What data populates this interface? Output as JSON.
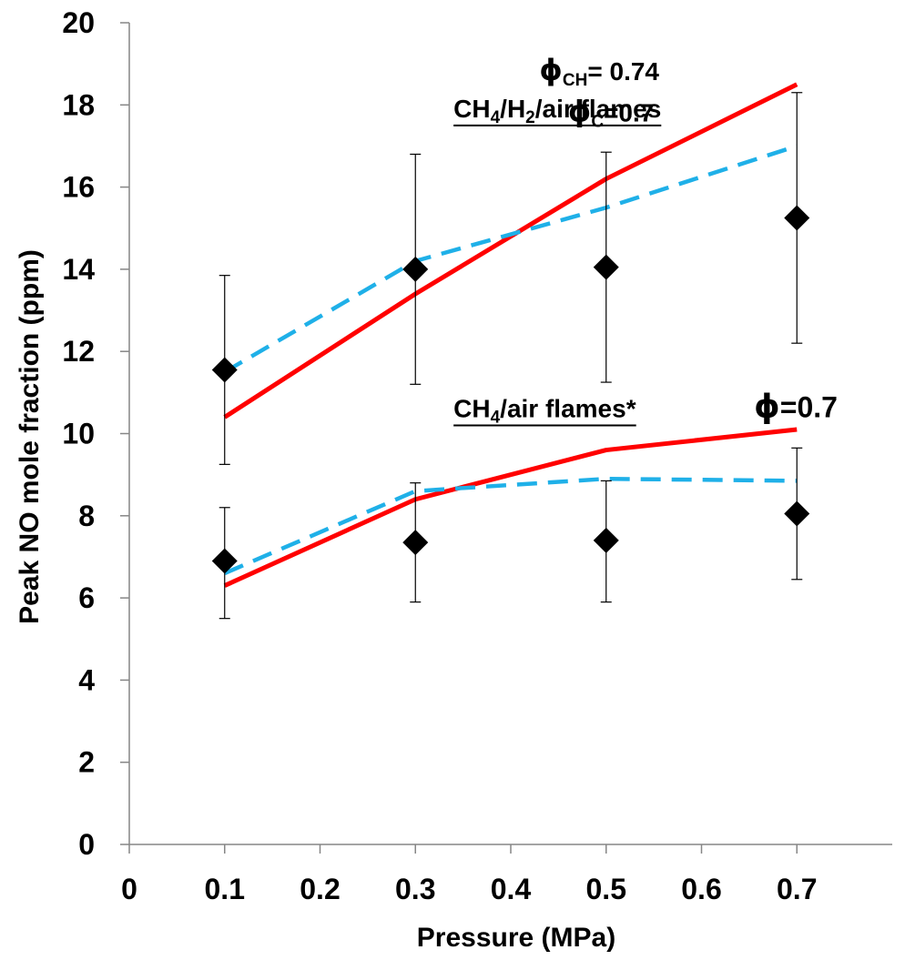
{
  "chart_data": {
    "type": "line",
    "xlabel": "Pressure (MPa)",
    "ylabel": "Peak NO mole fraction (ppm)",
    "xlim": [
      0,
      0.8
    ],
    "ylim": [
      0,
      20
    ],
    "x_ticks": [
      "0",
      "0.1",
      "0.2",
      "0.3",
      "0.4",
      "0.5",
      "0.6",
      "0.7"
    ],
    "y_ticks": [
      "0",
      "2",
      "4",
      "6",
      "8",
      "10",
      "12",
      "14",
      "16",
      "18",
      "20"
    ],
    "grid": false,
    "series": [
      {
        "group": "CH4/H2/air",
        "kind": "model-solid",
        "color": "#ff0000",
        "x": [
          0.1,
          0.3,
          0.5,
          0.7
        ],
        "y": [
          10.4,
          13.4,
          16.2,
          18.5
        ]
      },
      {
        "group": "CH4/H2/air",
        "kind": "model-dashed",
        "color": "#1fb0e8",
        "x": [
          0.1,
          0.3,
          0.5,
          0.7
        ],
        "y": [
          11.5,
          14.2,
          15.5,
          17.0
        ]
      },
      {
        "group": "CH4/H2/air",
        "kind": "experiment",
        "color": "#000000",
        "x": [
          0.1,
          0.3,
          0.5,
          0.7
        ],
        "y": [
          11.55,
          14.0,
          14.05,
          15.25
        ],
        "err_low": [
          9.25,
          11.2,
          11.25,
          12.2
        ],
        "err_high": [
          13.85,
          16.8,
          16.85,
          18.3
        ]
      },
      {
        "group": "CH4/air",
        "kind": "model-solid",
        "color": "#ff0000",
        "x": [
          0.1,
          0.3,
          0.5,
          0.7
        ],
        "y": [
          6.3,
          8.4,
          9.6,
          10.1
        ]
      },
      {
        "group": "CH4/air",
        "kind": "model-dashed",
        "color": "#1fb0e8",
        "x": [
          0.1,
          0.3,
          0.5,
          0.7
        ],
        "y": [
          6.6,
          8.6,
          8.9,
          8.85
        ]
      },
      {
        "group": "CH4/air",
        "kind": "experiment",
        "color": "#000000",
        "x": [
          0.1,
          0.3,
          0.5,
          0.7
        ],
        "y": [
          6.9,
          7.35,
          7.4,
          8.05
        ],
        "err_low": [
          5.5,
          5.9,
          5.9,
          6.45
        ],
        "err_high": [
          8.2,
          8.8,
          8.85,
          9.65
        ]
      }
    ],
    "annotations": {
      "ch4h2": {
        "parts": [
          "CH",
          "4",
          "/H",
          "2",
          "/air flames"
        ],
        "x": 0.34,
        "y": 17.7
      },
      "phi_ch": {
        "symbol": "ϕ",
        "sub": "CH",
        "value": "= 0.74",
        "x": 0.43,
        "y": 18.6
      },
      "phi_c": {
        "symbol": "ϕ",
        "sub": "C",
        "value": "=0.7",
        "x": 0.46,
        "y": 17.6
      },
      "ch4air": {
        "parts": [
          "CH",
          "4",
          "/air flames*"
        ],
        "x": 0.34,
        "y": 10.4
      },
      "phi": {
        "symbol": "ϕ",
        "value": "=0.7",
        "x": 0.655,
        "y": 10.4
      }
    }
  }
}
